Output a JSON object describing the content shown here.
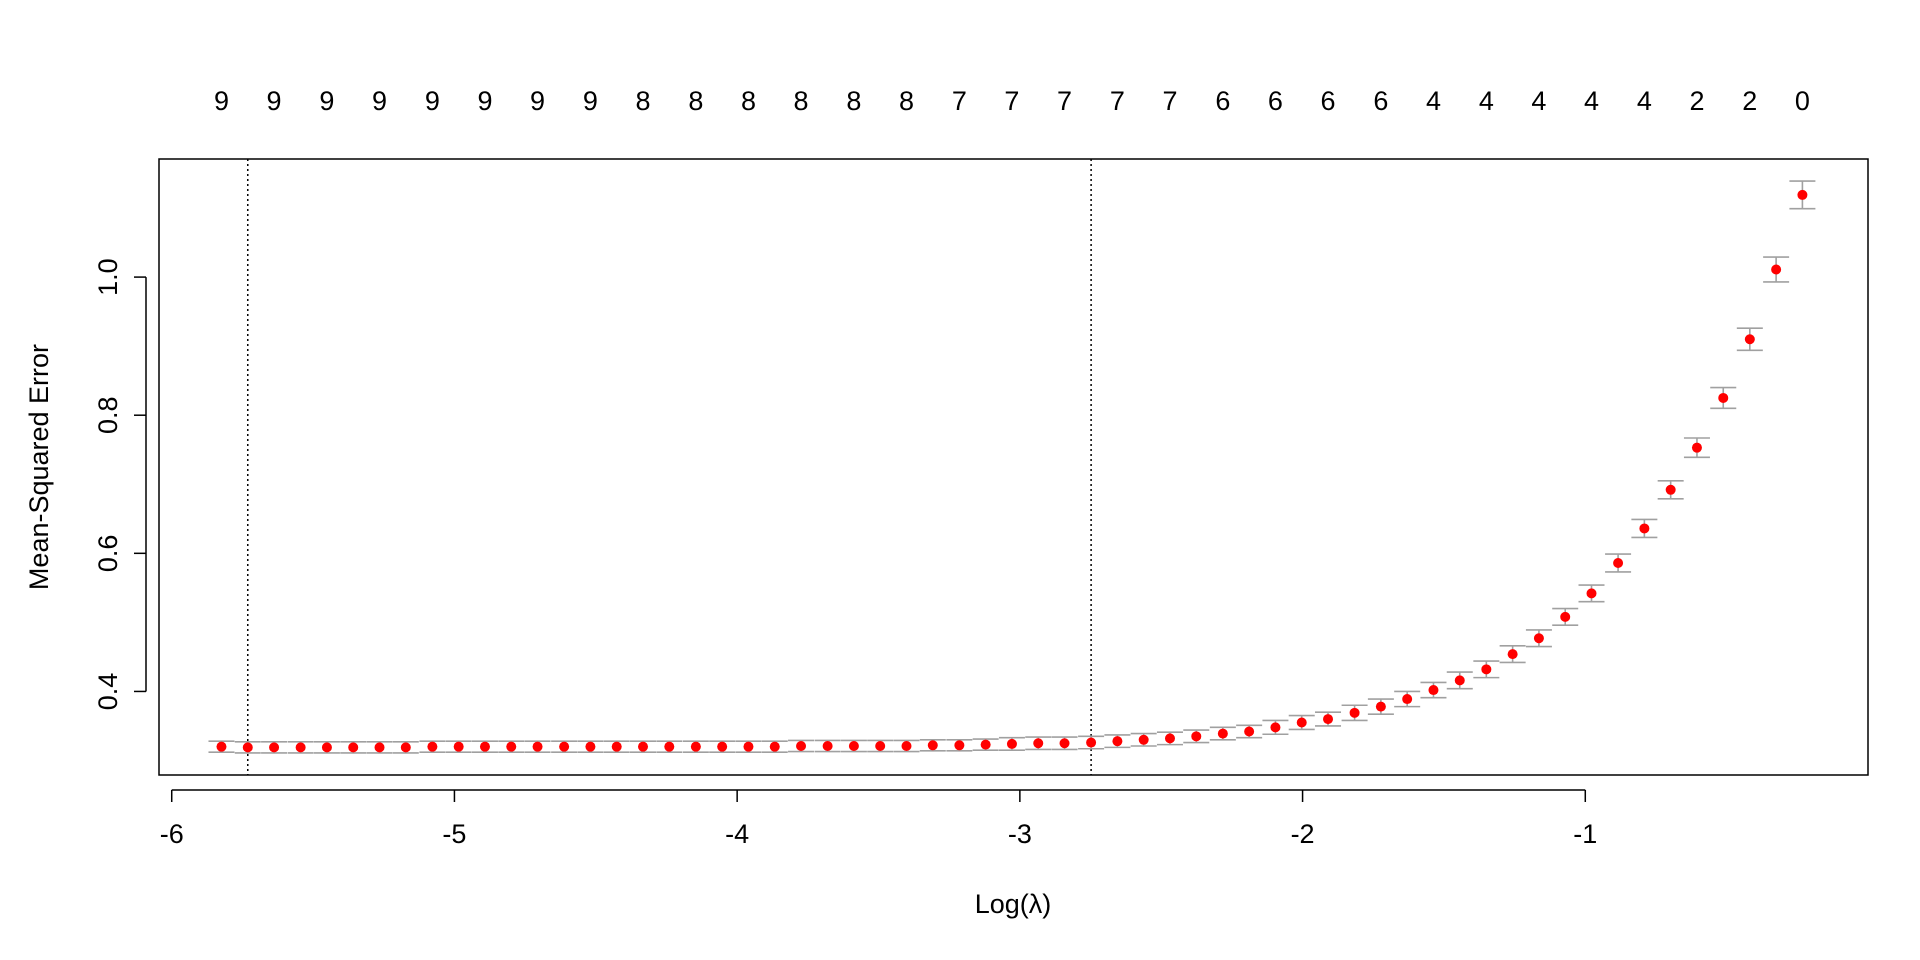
{
  "chart_data": {
    "type": "errorbar",
    "xlabel": "Log(λ)",
    "ylabel": "Mean-Squared Error",
    "x": [
      -5.824,
      -5.731,
      -5.638,
      -5.544,
      -5.451,
      -5.358,
      -5.265,
      -5.172,
      -5.078,
      -4.985,
      -4.892,
      -4.799,
      -4.706,
      -4.612,
      -4.519,
      -4.426,
      -4.333,
      -4.24,
      -4.146,
      -4.053,
      -3.96,
      -3.867,
      -3.774,
      -3.68,
      -3.587,
      -3.494,
      -3.401,
      -3.308,
      -3.214,
      -3.121,
      -3.028,
      -2.935,
      -2.842,
      -2.748,
      -2.655,
      -2.562,
      -2.469,
      -2.376,
      -2.282,
      -2.189,
      -2.096,
      -2.003,
      -1.91,
      -1.816,
      -1.723,
      -1.63,
      -1.537,
      -1.444,
      -1.35,
      -1.257,
      -1.164,
      -1.071,
      -0.978,
      -0.884,
      -0.791,
      -0.698,
      -0.605,
      -0.512,
      -0.418,
      -0.325,
      -0.232
    ],
    "values": [
      0.32,
      0.319,
      0.319,
      0.319,
      0.319,
      0.319,
      0.319,
      0.319,
      0.32,
      0.32,
      0.32,
      0.32,
      0.32,
      0.32,
      0.32,
      0.32,
      0.32,
      0.32,
      0.32,
      0.32,
      0.32,
      0.32,
      0.321,
      0.321,
      0.321,
      0.321,
      0.321,
      0.322,
      0.322,
      0.323,
      0.324,
      0.325,
      0.325,
      0.326,
      0.328,
      0.33,
      0.332,
      0.335,
      0.339,
      0.342,
      0.348,
      0.355,
      0.36,
      0.369,
      0.378,
      0.389,
      0.402,
      0.416,
      0.432,
      0.454,
      0.477,
      0.508,
      0.542,
      0.586,
      0.636,
      0.692,
      0.753,
      0.825,
      0.91,
      1.011,
      1.119
    ],
    "errors": [
      0.008,
      0.008,
      0.008,
      0.008,
      0.008,
      0.008,
      0.008,
      0.008,
      0.008,
      0.008,
      0.008,
      0.008,
      0.008,
      0.008,
      0.008,
      0.008,
      0.008,
      0.008,
      0.008,
      0.008,
      0.008,
      0.008,
      0.008,
      0.008,
      0.008,
      0.008,
      0.008,
      0.008,
      0.008,
      0.008,
      0.009,
      0.009,
      0.009,
      0.009,
      0.009,
      0.009,
      0.009,
      0.009,
      0.009,
      0.009,
      0.01,
      0.01,
      0.01,
      0.011,
      0.011,
      0.011,
      0.011,
      0.012,
      0.012,
      0.012,
      0.012,
      0.012,
      0.012,
      0.013,
      0.013,
      0.013,
      0.014,
      0.015,
      0.016,
      0.018,
      0.02
    ],
    "color": "#ff0000",
    "error_color": "#a0a0a0",
    "vlines": [
      -5.731,
      -2.748
    ],
    "xlim": [
      -6.045,
      0
    ],
    "ylim": [
      0.279,
      1.171
    ],
    "xticks": [
      -6,
      -5,
      -4,
      -3,
      -2,
      -1
    ],
    "yticks": [
      0.4,
      0.6,
      0.8,
      {
        "value": 1,
        "label": "1.0"
      }
    ],
    "top_ticks": [
      {
        "value": -5.824,
        "label": "9"
      },
      {
        "value": -5.638,
        "label": "9"
      },
      {
        "value": -5.451,
        "label": "9"
      },
      {
        "value": -5.265,
        "label": "9"
      },
      {
        "value": -5.078,
        "label": "9"
      },
      {
        "value": -4.892,
        "label": "9"
      },
      {
        "value": -4.706,
        "label": "9"
      },
      {
        "value": -4.519,
        "label": "9"
      },
      {
        "value": -4.333,
        "label": "8"
      },
      {
        "value": -4.146,
        "label": "8"
      },
      {
        "value": -3.96,
        "label": "8"
      },
      {
        "value": -3.774,
        "label": "8"
      },
      {
        "value": -3.587,
        "label": "8"
      },
      {
        "value": -3.401,
        "label": "8"
      },
      {
        "value": -3.214,
        "label": "7"
      },
      {
        "value": -3.028,
        "label": "7"
      },
      {
        "value": -2.842,
        "label": "7"
      },
      {
        "value": -2.655,
        "label": "7"
      },
      {
        "value": -2.469,
        "label": "7"
      },
      {
        "value": -2.282,
        "label": "6"
      },
      {
        "value": -2.096,
        "label": "6"
      },
      {
        "value": -1.91,
        "label": "6"
      },
      {
        "value": -1.723,
        "label": "6"
      },
      {
        "value": -1.537,
        "label": "4"
      },
      {
        "value": -1.35,
        "label": "4"
      },
      {
        "value": -1.164,
        "label": "4"
      },
      {
        "value": -0.978,
        "label": "4"
      },
      {
        "value": -0.791,
        "label": "4"
      },
      {
        "value": -0.605,
        "label": "2"
      },
      {
        "value": -0.418,
        "label": "2"
      },
      {
        "value": -0.232,
        "label": "0"
      }
    ]
  }
}
